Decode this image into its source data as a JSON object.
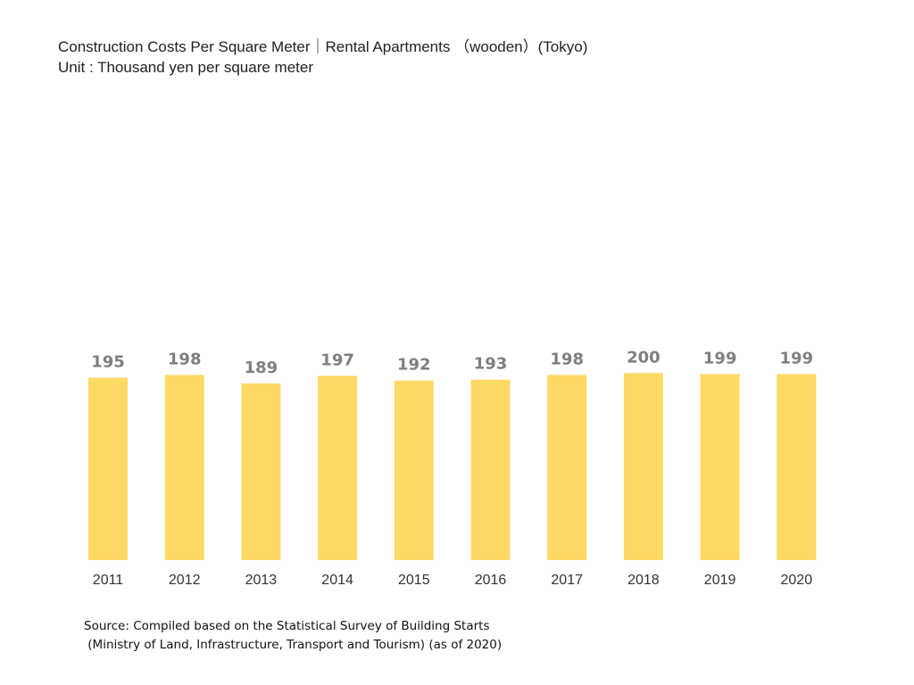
{
  "chart_data": {
    "type": "bar",
    "title": "Construction Costs Per Square Meter｜Rental Apartments （wooden）(Tokyo)",
    "subtitle": "Unit : Thousand yen per square meter",
    "categories": [
      "2011",
      "2012",
      "2013",
      "2014",
      "2015",
      "2016",
      "2017",
      "2018",
      "2019",
      "2020"
    ],
    "values": [
      195,
      198,
      189,
      197,
      192,
      193,
      198,
      200,
      199,
      199
    ],
    "ylim": [
      0,
      330
    ],
    "grid": false,
    "legend": "none",
    "bar_color": "#FFD966",
    "label_color": "#7F7F7F"
  },
  "source": {
    "line1": "Source: Compiled based on the Statistical Survey of Building Starts",
    "line2": " (Ministry of Land, Infrastructure, Transport and Tourism) (as of 2020)"
  }
}
